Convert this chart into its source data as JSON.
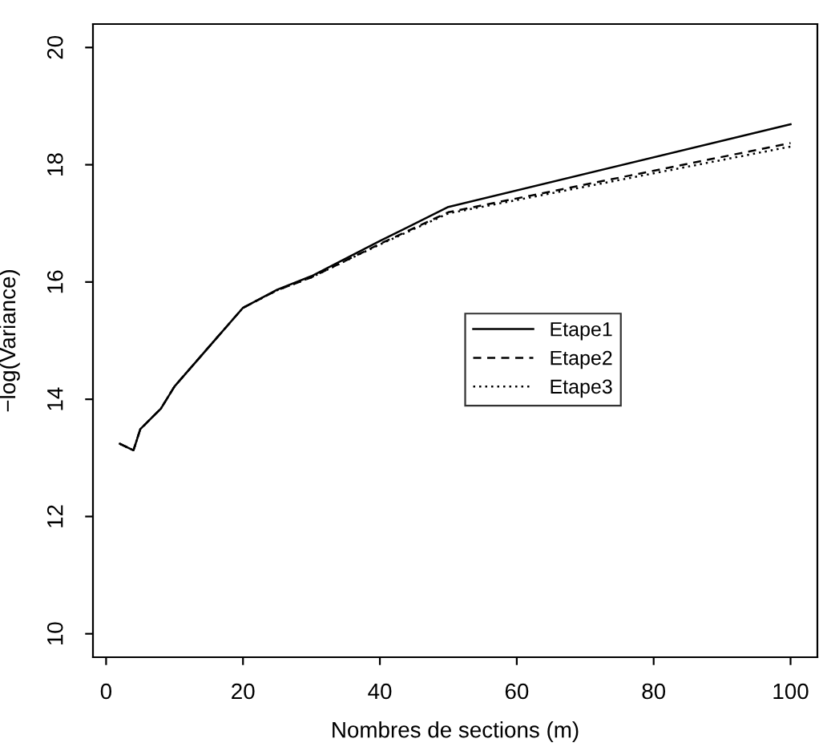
{
  "chart_data": {
    "type": "line",
    "xlabel": "Nombres de sections (m)",
    "ylabel": "−log(Variance)",
    "x": [
      2,
      4,
      5,
      8,
      10,
      20,
      25,
      30,
      40,
      50,
      100
    ],
    "series": [
      {
        "name": "Etape1",
        "color": "#000000",
        "line_style": "solid",
        "values": [
          13.24,
          13.13,
          13.49,
          13.84,
          14.22,
          15.56,
          15.87,
          16.1,
          16.7,
          17.28,
          18.69
        ]
      },
      {
        "name": "Etape2",
        "color": "#000000",
        "line_style": "dashed",
        "values": [
          13.24,
          13.13,
          13.49,
          13.84,
          14.22,
          15.56,
          15.86,
          16.08,
          16.65,
          17.19,
          18.37
        ]
      },
      {
        "name": "Etape3",
        "color": "#000000",
        "line_style": "dotted",
        "values": [
          13.24,
          13.13,
          13.49,
          13.84,
          14.22,
          15.56,
          15.86,
          16.08,
          16.64,
          17.17,
          18.31
        ]
      }
    ],
    "xlim": [
      -1.92,
      103.92
    ],
    "ylim": [
      9.6,
      20.4
    ],
    "xticks": [
      0,
      20,
      40,
      60,
      80,
      100
    ],
    "yticks": [
      10,
      12,
      14,
      16,
      18,
      20
    ],
    "grid": false,
    "legend": "right",
    "marker": "none"
  }
}
